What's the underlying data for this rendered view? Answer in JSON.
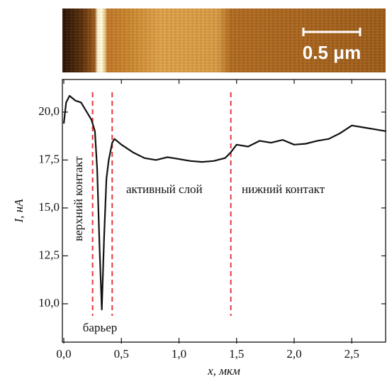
{
  "chart_data": {
    "type": "line",
    "image_scale_label": "0.5 μm",
    "xlabel": "x, мкм",
    "ylabel": "I, нА",
    "annotations": [
      "верхний контакт",
      "барьер",
      "активный слой",
      "нижний контакт"
    ],
    "boundaries": [
      0.25,
      0.42,
      1.45
    ],
    "boundary_color": "#e8373a",
    "x": [
      0.0,
      0.02,
      0.05,
      0.08,
      0.1,
      0.15,
      0.2,
      0.24,
      0.27,
      0.29,
      0.31,
      0.33,
      0.35,
      0.37,
      0.39,
      0.42,
      0.44,
      0.5,
      0.6,
      0.7,
      0.8,
      0.9,
      1.0,
      1.1,
      1.2,
      1.3,
      1.4,
      1.45,
      1.5,
      1.6,
      1.7,
      1.8,
      1.9,
      2.0,
      2.1,
      2.2,
      2.3,
      2.4,
      2.5,
      2.6,
      2.7,
      2.8
    ],
    "series": [
      {
        "color": "#111111",
        "values": [
          19.4,
          20.5,
          20.85,
          20.7,
          20.6,
          20.5,
          20.0,
          19.6,
          19.0,
          17.0,
          13.0,
          9.7,
          13.5,
          16.5,
          17.5,
          18.4,
          18.6,
          18.3,
          17.9,
          17.6,
          17.5,
          17.65,
          17.55,
          17.45,
          17.4,
          17.45,
          17.6,
          17.9,
          18.3,
          18.2,
          18.5,
          18.4,
          18.55,
          18.3,
          18.35,
          18.5,
          18.6,
          18.9,
          19.3,
          19.2,
          19.1,
          19.0
        ]
      }
    ],
    "xlim": [
      0,
      2.8
    ],
    "ylim": [
      8,
      21.7
    ],
    "xticks": [
      {
        "value": 0,
        "label": "0,0"
      },
      {
        "value": 0.5,
        "label": "0,5"
      },
      {
        "value": 1,
        "label": "1,0"
      },
      {
        "value": 1.5,
        "label": "1,5"
      },
      {
        "value": 2,
        "label": "2,0"
      },
      {
        "value": 2.5,
        "label": "2,5"
      }
    ],
    "yticks": [
      {
        "value": 10,
        "label": "10,0"
      },
      {
        "value": 12.5,
        "label": "12,5"
      },
      {
        "value": 15,
        "label": "15,0"
      },
      {
        "value": 17.5,
        "label": "17,5"
      },
      {
        "value": 20,
        "label": "20,0"
      }
    ]
  }
}
